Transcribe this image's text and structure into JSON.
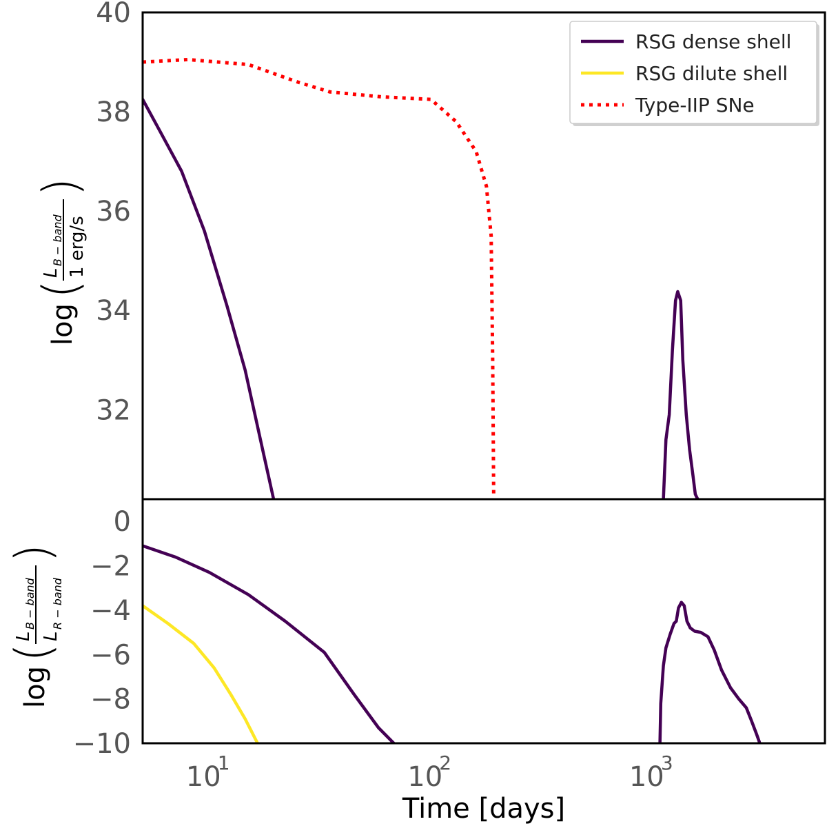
{
  "chart_data": [
    {
      "type": "line",
      "panel": "top",
      "xscale": "log",
      "xlim": [
        5,
        6000
      ],
      "ylim": [
        30.2,
        40
      ],
      "xlabel": "",
      "ylabel": {
        "prefix": "log",
        "numerator": "L",
        "numerator_sub": "B − band",
        "denominator": "1 erg/s"
      },
      "yticks": [
        32,
        34,
        36,
        38,
        40
      ],
      "yticklabels": [
        "32",
        "34",
        "36",
        "38",
        "40"
      ],
      "legend": {
        "placement": "top-right",
        "entries": [
          {
            "label": "RSG dense shell",
            "color": "#440154",
            "style": "solid"
          },
          {
            "label": "RSG dilute shell",
            "color": "#fde725",
            "style": "solid"
          },
          {
            "label": "Type-IIP SNe",
            "color": "#ff0000",
            "style": "dotted"
          }
        ]
      },
      "series": [
        {
          "name": "RSG dense shell",
          "color": "#440154",
          "style": "solid",
          "segments": [
            [
              [
                5,
                38.25
              ],
              [
                6,
                37.6
              ],
              [
                7.5,
                36.8
              ],
              [
                9.5,
                35.6
              ],
              [
                12,
                34.1
              ],
              [
                14.5,
                32.8
              ],
              [
                17,
                31.4
              ],
              [
                19.5,
                30.2
              ]
            ],
            [
              [
                1120,
                30.2
              ],
              [
                1150,
                31.4
              ],
              [
                1190,
                31.9
              ],
              [
                1230,
                33.2
              ],
              [
                1270,
                34.2
              ],
              [
                1300,
                34.38
              ],
              [
                1340,
                34.2
              ],
              [
                1370,
                33.0
              ],
              [
                1420,
                31.9
              ],
              [
                1470,
                31.2
              ],
              [
                1520,
                30.7
              ],
              [
                1560,
                30.3
              ],
              [
                1600,
                30.2
              ]
            ]
          ]
        },
        {
          "name": "Type-IIP SNe",
          "color": "#ff0000",
          "style": "dotted",
          "segments": [
            [
              [
                5,
                39.0
              ],
              [
                8,
                39.05
              ],
              [
                15,
                38.95
              ],
              [
                25,
                38.6
              ],
              [
                35,
                38.4
              ],
              [
                60,
                38.3
              ],
              [
                100,
                38.25
              ],
              [
                130,
                37.8
              ],
              [
                160,
                37.2
              ],
              [
                178,
                36.5
              ],
              [
                187,
                35.5
              ],
              [
                190,
                33.0
              ],
              [
                192,
                30.2
              ]
            ]
          ]
        }
      ]
    },
    {
      "type": "line",
      "panel": "bottom",
      "xscale": "log",
      "xlim": [
        5,
        6000
      ],
      "ylim": [
        -10,
        1
      ],
      "xlabel": "Time [days]",
      "ylabel": {
        "prefix": "log",
        "numerator": "L",
        "numerator_sub": "B − band",
        "denominator": "L",
        "denominator_sub": "R − band"
      },
      "xticks": [
        10,
        100,
        1000
      ],
      "xticklabels_base": "10",
      "xticklabels_exp": [
        "1",
        "2",
        "3"
      ],
      "yticks": [
        0,
        -2,
        -4,
        -6,
        -8,
        -10
      ],
      "yticklabels": [
        "0",
        "−2",
        "−4",
        "−6",
        "−8",
        "−10"
      ],
      "series": [
        {
          "name": "RSG dense shell",
          "color": "#440154",
          "style": "solid",
          "segments": [
            [
              [
                5,
                -1.1
              ],
              [
                7,
                -1.6
              ],
              [
                10,
                -2.3
              ],
              [
                15,
                -3.3
              ],
              [
                22,
                -4.5
              ],
              [
                33,
                -5.9
              ],
              [
                45,
                -7.8
              ],
              [
                58,
                -9.3
              ],
              [
                68,
                -10
              ]
            ],
            [
              [
                1080,
                -10
              ],
              [
                1090,
                -8.2
              ],
              [
                1120,
                -6.5
              ],
              [
                1150,
                -5.7
              ],
              [
                1200,
                -5.1
              ],
              [
                1250,
                -4.6
              ],
              [
                1280,
                -4.5
              ],
              [
                1310,
                -3.9
              ],
              [
                1350,
                -3.65
              ],
              [
                1390,
                -3.8
              ],
              [
                1430,
                -4.5
              ],
              [
                1480,
                -4.8
              ],
              [
                1550,
                -4.95
              ],
              [
                1650,
                -5.0
              ],
              [
                1780,
                -5.2
              ],
              [
                1900,
                -5.8
              ],
              [
                2050,
                -6.7
              ],
              [
                2250,
                -7.5
              ],
              [
                2450,
                -8.0
              ],
              [
                2650,
                -8.4
              ],
              [
                2800,
                -9.0
              ],
              [
                2950,
                -9.6
              ],
              [
                3050,
                -10
              ]
            ]
          ]
        },
        {
          "name": "RSG dilute shell",
          "color": "#fde725",
          "style": "solid",
          "segments": [
            [
              [
                5,
                -3.8
              ],
              [
                6.5,
                -4.6
              ],
              [
                8.5,
                -5.5
              ],
              [
                10.5,
                -6.6
              ],
              [
                12.5,
                -7.8
              ],
              [
                14.5,
                -8.9
              ],
              [
                16.5,
                -10
              ]
            ]
          ]
        }
      ]
    }
  ]
}
